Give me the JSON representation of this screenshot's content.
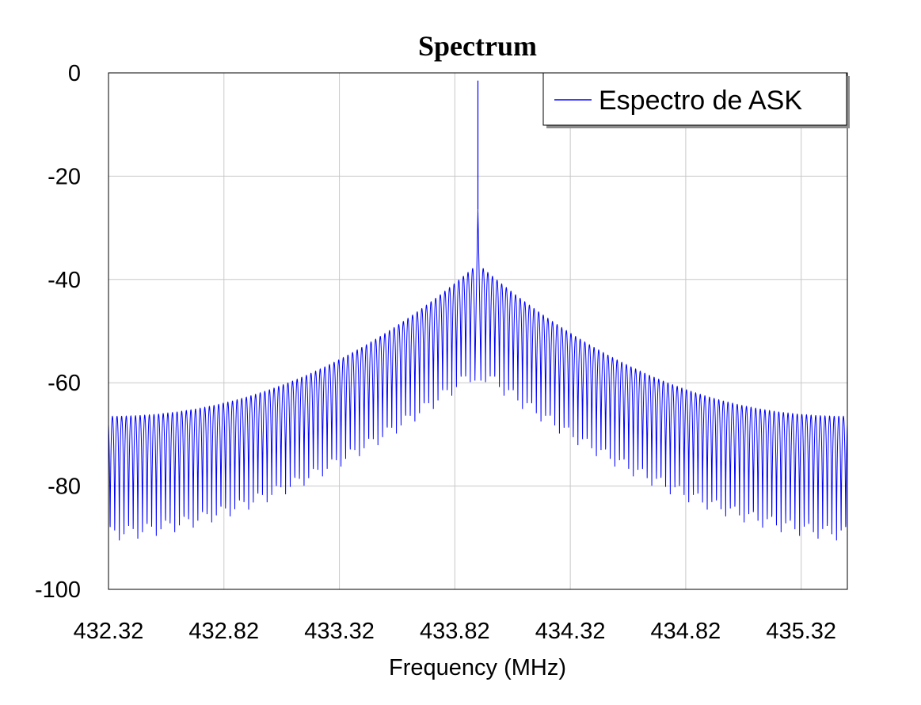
{
  "chart_data": {
    "type": "line",
    "title": "Spectrum",
    "xlabel": "Frequency (MHz)",
    "ylabel": "",
    "xlim": [
      432.32,
      435.52
    ],
    "ylim": [
      -100,
      0
    ],
    "x_ticks": [
      432.32,
      432.82,
      433.32,
      433.82,
      434.32,
      434.82,
      435.32
    ],
    "x_tick_labels": [
      "432.32",
      "432.82",
      "433.32",
      "433.82",
      "434.32",
      "434.82",
      "435.32"
    ],
    "y_ticks": [
      0,
      -20,
      -40,
      -60,
      -80,
      -100
    ],
    "y_tick_labels": [
      "0",
      "-20",
      "-40",
      "-60",
      "-80",
      "-100"
    ],
    "grid": true,
    "legend_position": "top-right",
    "series": [
      {
        "name": "Espectro de ASK",
        "color": "#0000ff",
        "carrier_frequency": 433.92,
        "carrier_peak": -1.5,
        "main_lobe_peak": -26.5,
        "sideband_peak_near": -37,
        "sideband_peak_far": -66.5,
        "sideband_trough_near": -60,
        "sideband_trough_far": -92,
        "sideband_spacing": 0.02
      }
    ]
  }
}
